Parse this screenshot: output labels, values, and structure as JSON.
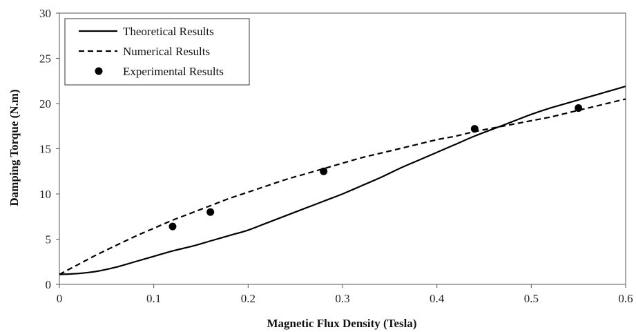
{
  "chart_data": {
    "type": "line",
    "title": "",
    "xlabel": "Magnetic Flux Density (Tesla)",
    "ylabel": "Damping Torque (N.m)",
    "xlim": [
      0,
      0.6
    ],
    "ylim": [
      0,
      30
    ],
    "x_ticks": [
      "0",
      "0.1",
      "0.2",
      "0.3",
      "0.4",
      "0.5",
      "0.6"
    ],
    "y_ticks": [
      "0",
      "5",
      "10",
      "15",
      "20",
      "25",
      "30"
    ],
    "grid": false,
    "legend_position": "top-left",
    "series": [
      {
        "name": "Theoretical Results",
        "style": "solid",
        "color": "#000000",
        "x": [
          0,
          0.02,
          0.04,
          0.06,
          0.08,
          0.1,
          0.12,
          0.14,
          0.16,
          0.18,
          0.2,
          0.22,
          0.24,
          0.26,
          0.28,
          0.3,
          0.32,
          0.34,
          0.36,
          0.38,
          0.4,
          0.42,
          0.44,
          0.46,
          0.48,
          0.5,
          0.52,
          0.54,
          0.56,
          0.58,
          0.6
        ],
        "y": [
          1.1,
          1.2,
          1.45,
          1.9,
          2.5,
          3.1,
          3.7,
          4.2,
          4.8,
          5.4,
          6.0,
          6.8,
          7.6,
          8.4,
          9.2,
          10.0,
          10.9,
          11.8,
          12.8,
          13.7,
          14.6,
          15.5,
          16.4,
          17.2,
          18.0,
          18.8,
          19.5,
          20.1,
          20.7,
          21.3,
          21.9
        ]
      },
      {
        "name": "Numerical Results",
        "style": "dashed",
        "color": "#000000",
        "x": [
          0,
          0.02,
          0.04,
          0.06,
          0.08,
          0.1,
          0.12,
          0.14,
          0.16,
          0.18,
          0.2,
          0.22,
          0.24,
          0.26,
          0.28,
          0.3,
          0.32,
          0.34,
          0.36,
          0.38,
          0.4,
          0.42,
          0.44,
          0.46,
          0.48,
          0.5,
          0.52,
          0.54,
          0.56,
          0.58,
          0.6
        ],
        "y": [
          1.1,
          2.2,
          3.3,
          4.3,
          5.3,
          6.2,
          7.1,
          7.9,
          8.7,
          9.5,
          10.2,
          10.9,
          11.6,
          12.2,
          12.8,
          13.4,
          14.0,
          14.5,
          15.0,
          15.5,
          16.0,
          16.4,
          16.9,
          17.3,
          17.7,
          18.1,
          18.5,
          19.0,
          19.5,
          20.0,
          20.5
        ]
      },
      {
        "name": "Experimental Results",
        "style": "markers",
        "color": "#000000",
        "x": [
          0.12,
          0.16,
          0.28,
          0.44,
          0.55
        ],
        "y": [
          6.4,
          8.0,
          12.5,
          17.2,
          19.5
        ]
      }
    ]
  }
}
